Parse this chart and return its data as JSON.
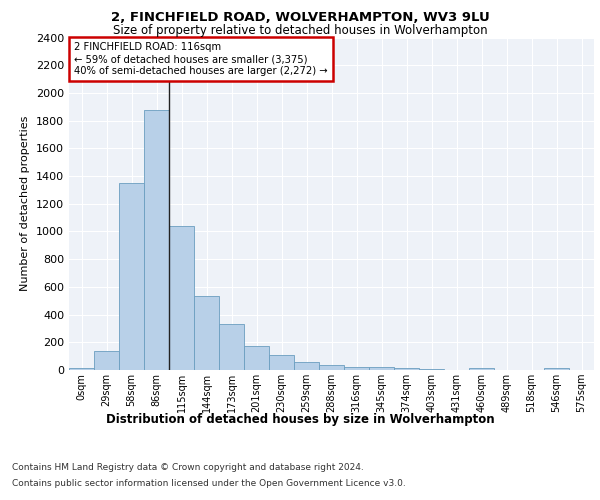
{
  "title": "2, FINCHFIELD ROAD, WOLVERHAMPTON, WV3 9LU",
  "subtitle": "Size of property relative to detached houses in Wolverhampton",
  "xlabel": "Distribution of detached houses by size in Wolverhampton",
  "ylabel": "Number of detached properties",
  "bin_labels": [
    "0sqm",
    "29sqm",
    "58sqm",
    "86sqm",
    "115sqm",
    "144sqm",
    "173sqm",
    "201sqm",
    "230sqm",
    "259sqm",
    "288sqm",
    "316sqm",
    "345sqm",
    "374sqm",
    "403sqm",
    "431sqm",
    "460sqm",
    "489sqm",
    "518sqm",
    "546sqm",
    "575sqm"
  ],
  "bar_heights": [
    15,
    135,
    1350,
    1880,
    1040,
    535,
    330,
    170,
    110,
    55,
    35,
    25,
    20,
    15,
    5,
    0,
    15,
    0,
    0,
    15,
    0
  ],
  "bar_color": "#b8d0e8",
  "bar_edge_color": "#6a9ec0",
  "property_line_x": 3.5,
  "annotation_title": "2 FINCHFIELD ROAD: 116sqm",
  "annotation_line1": "← 59% of detached houses are smaller (3,375)",
  "annotation_line2": "40% of semi-detached houses are larger (2,272) →",
  "annotation_box_color": "#ffffff",
  "annotation_box_edge": "#cc0000",
  "property_line_color": "#222222",
  "ylim": [
    0,
    2400
  ],
  "yticks": [
    0,
    200,
    400,
    600,
    800,
    1000,
    1200,
    1400,
    1600,
    1800,
    2000,
    2200,
    2400
  ],
  "footer_line1": "Contains HM Land Registry data © Crown copyright and database right 2024.",
  "footer_line2": "Contains public sector information licensed under the Open Government Licence v3.0.",
  "background_color": "#eef2f8",
  "grid_color": "#ffffff"
}
